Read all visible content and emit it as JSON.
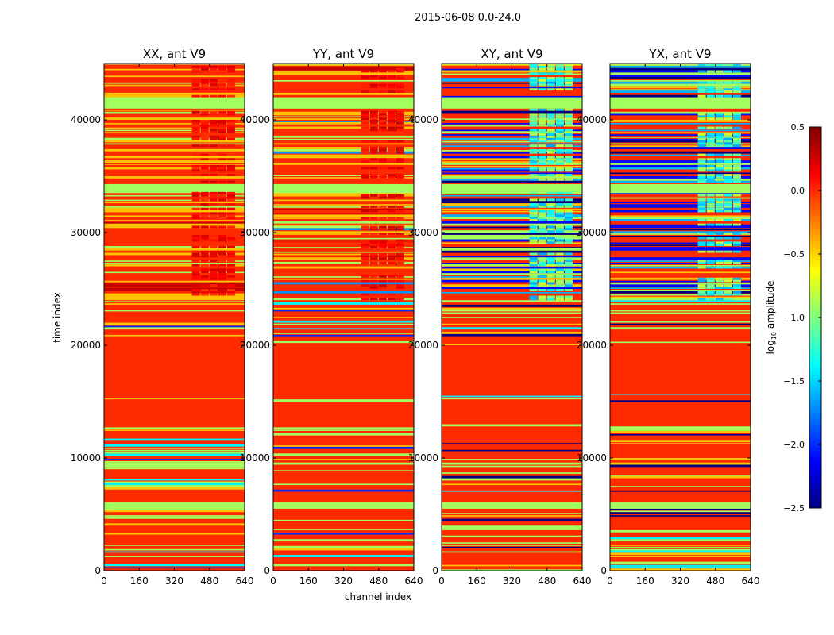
{
  "chart_data": {
    "type": "heatmap",
    "title": "2015-06-08 0.0-24.0",
    "xlabel": "channel index",
    "ylabel": "time index",
    "xlim": [
      0,
      640
    ],
    "ylim": [
      0,
      45000
    ],
    "xticks": [
      "0",
      "160",
      "320",
      "480",
      "640"
    ],
    "xtick_values": [
      0,
      160,
      320,
      480,
      640
    ],
    "yticks": [
      "0",
      "10000",
      "20000",
      "30000",
      "40000"
    ],
    "ytick_values": [
      0,
      10000,
      20000,
      30000,
      40000
    ],
    "colorbar": {
      "label_main": "log",
      "label_sub": "10",
      "label_rest": " amplitude",
      "range": [
        -2.5,
        0.5
      ],
      "ticks": [
        "0.5",
        "0.0",
        "−0.5",
        "−1.0",
        "−1.5",
        "−2.0",
        "−2.5"
      ],
      "tick_values": [
        0.5,
        0.0,
        -0.5,
        -1.0,
        -1.5,
        -2.0,
        -2.5
      ],
      "colormap": "jet"
    },
    "panels": [
      {
        "title": "XX, ant V9",
        "base": 0.0,
        "seed": 11,
        "cross": false,
        "bands": [
          [
            41000,
            42000,
            -0.9
          ],
          [
            33500,
            34300,
            -0.9
          ],
          [
            5500,
            6100,
            -0.9
          ],
          [
            6100,
            7000,
            0.0
          ],
          [
            13000,
            15000,
            0.0
          ],
          [
            15300,
            20000,
            0.0
          ],
          [
            44900,
            45000,
            -0.9
          ]
        ],
        "channel_block": {
          "range": [
            400,
            600
          ],
          "value": 0.12,
          "from_time": 24000
        }
      },
      {
        "title": "YY, ant V9",
        "base": 0.0,
        "seed": 23,
        "cross": false,
        "bands": [
          [
            41000,
            42000,
            -0.9
          ],
          [
            33500,
            34300,
            -0.9
          ],
          [
            5500,
            6100,
            -0.9
          ],
          [
            6100,
            7000,
            0.0
          ],
          [
            13000,
            15000,
            0.0
          ],
          [
            15300,
            20000,
            0.0
          ],
          [
            44900,
            45000,
            -0.9
          ]
        ],
        "channel_block": {
          "range": [
            400,
            600
          ],
          "value": 0.15,
          "from_time": 24000
        }
      },
      {
        "title": "XY, ant V9",
        "base": 0.0,
        "seed": 37,
        "cross": true,
        "bands": [
          [
            41000,
            42000,
            -0.9
          ],
          [
            33500,
            34300,
            -0.9
          ],
          [
            5500,
            6100,
            -0.9
          ],
          [
            6100,
            7000,
            0.0
          ],
          [
            13000,
            15000,
            0.0
          ],
          [
            15700,
            20000,
            0.0
          ],
          [
            44900,
            45000,
            -0.9
          ]
        ],
        "channel_block": {
          "range": [
            400,
            600
          ],
          "value": -1.2,
          "from_time": 24000
        }
      },
      {
        "title": "YX, ant V9",
        "base": 0.0,
        "seed": 51,
        "cross": true,
        "bands": [
          [
            41000,
            42000,
            -0.9
          ],
          [
            33500,
            34300,
            -0.9
          ],
          [
            5500,
            6100,
            -0.9
          ],
          [
            6100,
            7000,
            0.0
          ],
          [
            13000,
            15000,
            0.0
          ],
          [
            15700,
            20000,
            0.0
          ],
          [
            44900,
            45000,
            -0.9
          ]
        ],
        "channel_block": {
          "range": [
            400,
            600
          ],
          "value": -1.2,
          "from_time": 24000
        }
      }
    ]
  }
}
